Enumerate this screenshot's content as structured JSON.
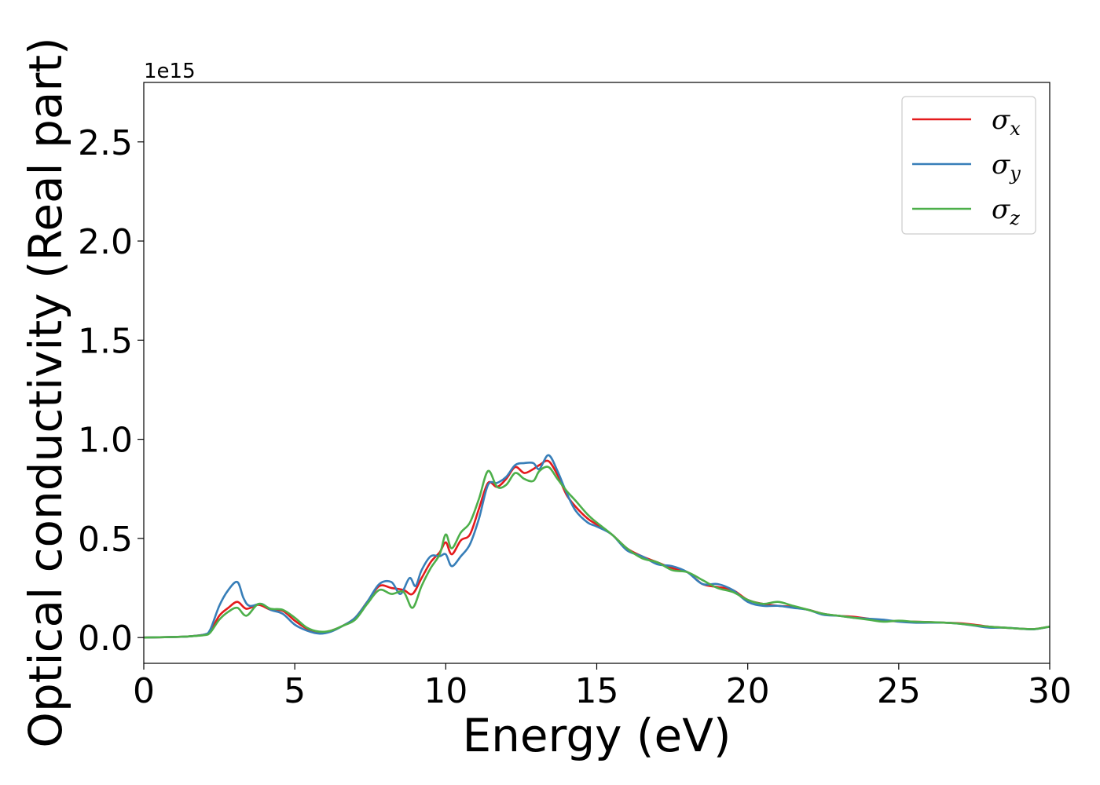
{
  "chart_data": {
    "type": "line",
    "xlabel": "Energy (eV)",
    "ylabel": "Optical conductivity (Real part)",
    "y_offset_text": "1e15",
    "xlim": [
      0,
      30
    ],
    "ylim": [
      -0.13,
      2.8
    ],
    "x_ticks": [
      0,
      5,
      10,
      15,
      20,
      25,
      30
    ],
    "x_tick_labels": [
      "0",
      "5",
      "10",
      "15",
      "20",
      "25",
      "30"
    ],
    "y_ticks": [
      0.0,
      0.5,
      1.0,
      1.5,
      2.0,
      2.5
    ],
    "y_tick_labels": [
      "0.0",
      "0.5",
      "1.0",
      "1.5",
      "2.0",
      "2.5"
    ],
    "grid": false,
    "legend_position": "top-right",
    "series": [
      {
        "name": "σx",
        "symbol": "σ",
        "subscript": "x",
        "color": "#e41a1c",
        "x": [
          0,
          1,
          1.5,
          2,
          2.2,
          2.5,
          2.8,
          3.1,
          3.4,
          3.8,
          4.2,
          4.6,
          5,
          5.4,
          5.8,
          6.2,
          6.6,
          7,
          7.4,
          7.8,
          8.2,
          8.6,
          8.9,
          9.2,
          9.5,
          9.8,
          10,
          10.2,
          10.5,
          10.8,
          11.1,
          11.4,
          11.7,
          12,
          12.3,
          12.6,
          12.9,
          13.1,
          13.4,
          13.7,
          14,
          14.3,
          14.7,
          15,
          15.5,
          16,
          16.5,
          17,
          17.5,
          18,
          18.5,
          19,
          19.5,
          20,
          20.5,
          21,
          21.5,
          22,
          22.5,
          23,
          23.5,
          24,
          24.5,
          25,
          25.5,
          26,
          26.5,
          27,
          27.5,
          28,
          28.5,
          29,
          29.5,
          30
        ],
        "y": [
          0.0,
          0.003,
          0.006,
          0.015,
          0.03,
          0.11,
          0.15,
          0.18,
          0.145,
          0.165,
          0.14,
          0.135,
          0.085,
          0.045,
          0.025,
          0.035,
          0.06,
          0.1,
          0.18,
          0.26,
          0.25,
          0.24,
          0.22,
          0.3,
          0.38,
          0.43,
          0.48,
          0.42,
          0.49,
          0.52,
          0.65,
          0.78,
          0.76,
          0.8,
          0.86,
          0.83,
          0.85,
          0.87,
          0.89,
          0.82,
          0.72,
          0.66,
          0.6,
          0.57,
          0.52,
          0.45,
          0.41,
          0.38,
          0.35,
          0.33,
          0.27,
          0.255,
          0.24,
          0.19,
          0.17,
          0.16,
          0.155,
          0.14,
          0.12,
          0.11,
          0.105,
          0.095,
          0.085,
          0.082,
          0.08,
          0.078,
          0.075,
          0.072,
          0.065,
          0.055,
          0.05,
          0.045,
          0.043,
          0.055
        ]
      },
      {
        "name": "σy",
        "symbol": "σ",
        "subscript": "y",
        "color": "#377eb8",
        "x": [
          0,
          1,
          1.5,
          2,
          2.2,
          2.5,
          2.8,
          3.1,
          3.3,
          3.5,
          3.9,
          4.2,
          4.6,
          5,
          5.4,
          5.8,
          6.2,
          6.6,
          7,
          7.4,
          7.8,
          8.2,
          8.5,
          8.8,
          9,
          9.2,
          9.5,
          9.8,
          10,
          10.2,
          10.5,
          10.8,
          11.1,
          11.4,
          11.7,
          12,
          12.3,
          12.6,
          12.9,
          13.1,
          13.4,
          13.7,
          14,
          14.3,
          14.7,
          15,
          15.5,
          16,
          16.5,
          17,
          17.5,
          18,
          18.5,
          19,
          19.5,
          20,
          20.5,
          21,
          21.5,
          22,
          22.5,
          23,
          23.5,
          24,
          24.5,
          25,
          25.5,
          26,
          26.5,
          27,
          27.5,
          28,
          28.5,
          29,
          29.5,
          30
        ],
        "y": [
          0.0,
          0.003,
          0.006,
          0.015,
          0.04,
          0.16,
          0.24,
          0.28,
          0.2,
          0.16,
          0.17,
          0.14,
          0.12,
          0.065,
          0.035,
          0.02,
          0.03,
          0.06,
          0.1,
          0.18,
          0.27,
          0.28,
          0.22,
          0.3,
          0.26,
          0.34,
          0.41,
          0.41,
          0.42,
          0.36,
          0.41,
          0.47,
          0.6,
          0.77,
          0.78,
          0.81,
          0.87,
          0.88,
          0.88,
          0.85,
          0.92,
          0.84,
          0.73,
          0.64,
          0.58,
          0.56,
          0.52,
          0.44,
          0.41,
          0.37,
          0.36,
          0.33,
          0.27,
          0.27,
          0.24,
          0.18,
          0.16,
          0.16,
          0.15,
          0.14,
          0.115,
          0.11,
          0.1,
          0.095,
          0.09,
          0.08,
          0.075,
          0.075,
          0.075,
          0.07,
          0.06,
          0.05,
          0.05,
          0.045,
          0.042,
          0.055
        ]
      },
      {
        "name": "σz",
        "symbol": "σ",
        "subscript": "z",
        "color": "#4daf4a",
        "x": [
          0,
          1,
          1.5,
          2,
          2.2,
          2.5,
          2.8,
          3.1,
          3.4,
          3.8,
          4.2,
          4.6,
          5,
          5.4,
          5.8,
          6.2,
          6.6,
          7,
          7.4,
          7.8,
          8.2,
          8.6,
          8.9,
          9.2,
          9.5,
          9.8,
          10,
          10.2,
          10.5,
          10.8,
          11.1,
          11.4,
          11.7,
          12,
          12.3,
          12.6,
          12.9,
          13.1,
          13.4,
          13.7,
          14,
          14.3,
          14.7,
          15,
          15.5,
          16,
          16.5,
          17,
          17.5,
          18,
          18.5,
          19,
          19.5,
          20,
          20.5,
          21,
          21.5,
          22,
          22.5,
          23,
          23.5,
          24,
          24.5,
          25,
          25.5,
          26,
          26.5,
          27,
          27.5,
          28,
          28.5,
          29,
          29.5,
          30
        ],
        "y": [
          0.0,
          0.003,
          0.006,
          0.012,
          0.025,
          0.09,
          0.13,
          0.15,
          0.11,
          0.17,
          0.145,
          0.14,
          0.1,
          0.05,
          0.03,
          0.035,
          0.06,
          0.09,
          0.17,
          0.24,
          0.22,
          0.23,
          0.15,
          0.26,
          0.35,
          0.42,
          0.52,
          0.45,
          0.53,
          0.58,
          0.7,
          0.84,
          0.76,
          0.77,
          0.83,
          0.8,
          0.79,
          0.84,
          0.86,
          0.8,
          0.74,
          0.69,
          0.62,
          0.58,
          0.52,
          0.45,
          0.4,
          0.38,
          0.34,
          0.33,
          0.29,
          0.25,
          0.23,
          0.19,
          0.17,
          0.18,
          0.16,
          0.14,
          0.12,
          0.11,
          0.1,
          0.09,
          0.08,
          0.085,
          0.08,
          0.078,
          0.075,
          0.07,
          0.062,
          0.055,
          0.05,
          0.045,
          0.043,
          0.055
        ]
      }
    ]
  }
}
